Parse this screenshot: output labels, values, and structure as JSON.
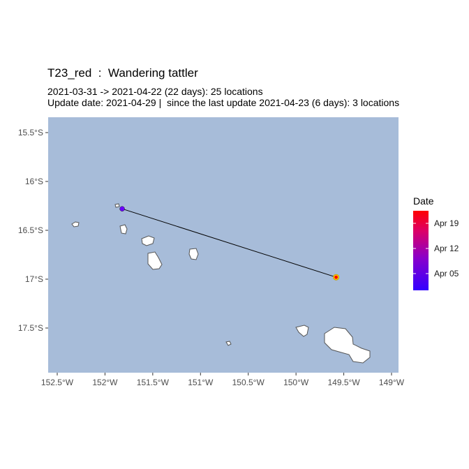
{
  "map": {
    "title": "T23_red  :  Wandering tattler",
    "subtitle_line1": "2021-03-31 -> 2021-04-22 (22 days): 25 locations",
    "subtitle_line2": "Update date: 2021-04-29 |  since the last update 2021-04-23 (6 days): 3 locations",
    "colors": {
      "ocean": "#a7bcd9",
      "land": "#ffffff",
      "coast": "#555555",
      "track": "#000000"
    }
  },
  "chart_data": {
    "type": "scatter",
    "title": "T23_red  :  Wandering tattler",
    "x_ticks": [
      "152.5°W",
      "152°W",
      "151.5°W",
      "151°W",
      "150.5°W",
      "150°W",
      "149.5°W",
      "149°W"
    ],
    "y_ticks": [
      "15.5°S",
      "16°S",
      "16.5°S",
      "17°S",
      "17.5°S"
    ],
    "x_tick_values": [
      -152.5,
      -152,
      -151.5,
      -151,
      -150.5,
      -150,
      -149.5,
      -149
    ],
    "y_tick_values": [
      -15.5,
      -16,
      -16.5,
      -17,
      -17.5
    ],
    "xlim": [
      -152.5,
      -148.9
    ],
    "ylim": [
      -17.95,
      -15.3
    ],
    "series": [
      {
        "name": "track",
        "points": [
          {
            "lon": -151.82,
            "lat": -16.28,
            "date": "2021-03-31"
          },
          {
            "lon": -149.58,
            "lat": -16.98,
            "date": "2021-04-22"
          }
        ]
      }
    ],
    "legend": {
      "title": "Date",
      "labels": [
        "Apr 19",
        "Apr 12",
        "Apr 05"
      ],
      "position": "right",
      "colors": [
        "#ff0000",
        "#cc0055",
        "#7a00cc",
        "#3300ff"
      ]
    }
  }
}
